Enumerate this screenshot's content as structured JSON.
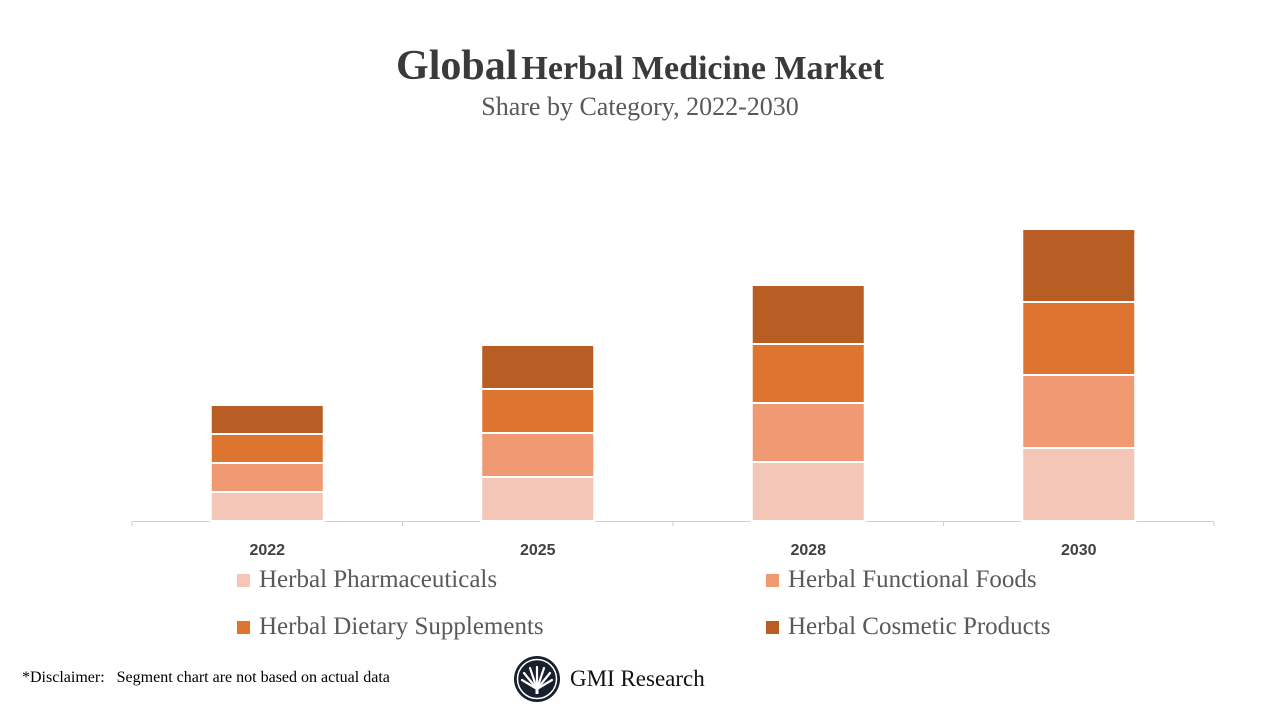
{
  "chart_data": {
    "type": "bar",
    "stacked": true,
    "title_prefix": "Global",
    "title_rest": "Herbal Medicine Market",
    "subtitle": "Share by Category, 2022-2030",
    "categories": [
      "2022",
      "2025",
      "2028",
      "2030"
    ],
    "series": [
      {
        "name": "Herbal Pharmaceuticals",
        "color": "#F4C6B8",
        "values": [
          29,
          44,
          59,
          73
        ]
      },
      {
        "name": "Herbal Functional Foods",
        "color": "#EF9A72",
        "values": [
          29,
          44,
          59,
          73
        ]
      },
      {
        "name": "Herbal Dietary Supplements",
        "color": "#DD742F",
        "values": [
          29,
          44,
          59,
          73
        ]
      },
      {
        "name": "Herbal Cosmetic Products",
        "color": "#B85E24",
        "values": [
          29,
          44,
          59,
          73
        ]
      }
    ],
    "ylim": [
      0,
      330
    ],
    "y_axis_visible": false,
    "grid": false,
    "legend_position": "bottom"
  },
  "disclaimer": "*Disclaimer:   Segment chart are not based on actual data",
  "logo": {
    "text": "GMI Research",
    "icon": "fan-leaf-logo"
  }
}
